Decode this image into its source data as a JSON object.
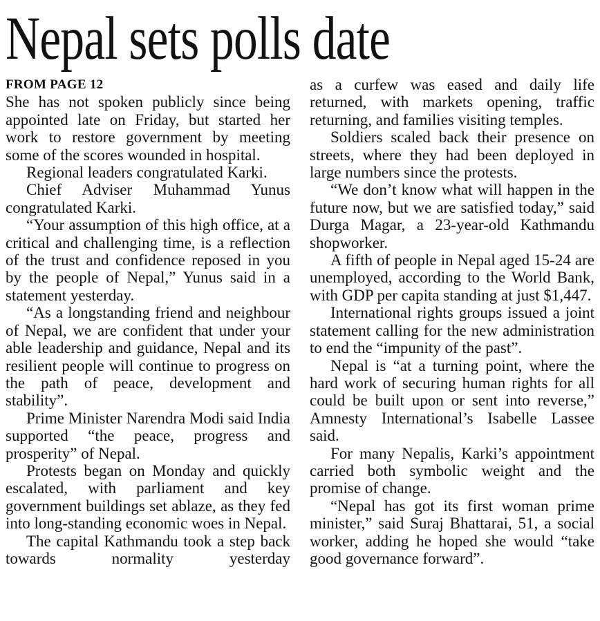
{
  "article": {
    "headline": "Nepal sets polls date",
    "kicker": "FROM PAGE 12",
    "ink_color": "#151413",
    "background_color": "#ffffff",
    "columns": [
      {
        "paragraphs": [
          "She has not spoken publicly since being appointed late on Friday, but started her work to restore government by meeting some of the scores wounded in hospital.",
          "Regional leaders congratulated Karki.",
          "Chief Adviser Muhammad Yunus congratulated Karki.",
          "“Your assumption of this high office, at a critical and challenging time, is a reflection of the trust and confidence reposed in you by the people of Nepal,” Yunus said in a statement yesterday.",
          "“As a longstanding friend and neighbour of Nepal, we are confident that under your able leadership and guidance, Nepal and its resilient people will continue to progress on the path of peace, development and stability”.",
          "Prime Minister Narendra Modi said India supported “the peace, progress and prosperity” of Nepal.",
          "Protests began on Monday and quickly escalated, with parliament and key government buildings set ablaze, as they fed into long-standing economic woes in Nepal.",
          "The capital Kathmandu took a step back towards normality yesterday"
        ]
      },
      {
        "paragraphs": [
          "as a curfew was eased and daily life returned, with markets opening, traffic returning, and families visiting temples.",
          "Soldiers scaled back their presence on streets, where they had been deployed in large numbers since the protests.",
          "“We don’t know what will happen in the future now, but we are satisfied today,” said Durga Magar, a 23-year-old Kathmandu shopworker.",
          "A fifth of people in Nepal aged 15-24 are unemployed, according to the World Bank, with GDP per capita standing at just $1,447.",
          "International rights groups issued a joint statement calling for the new administration to end the “impunity of the past”.",
          "Nepal is “at a turning point, where the hard work of securing human rights for all could be built upon or sent into reverse,” Amnesty International’s Isabelle Lassee said.",
          "For many Nepalis, Karki’s appointment carried both symbolic weight and the promise of change.",
          "“Nepal has got its first woman prime minister,” said Suraj Bhattarai, 51, a social worker, adding he hoped she would “take good governance forward”."
        ]
      }
    ]
  }
}
